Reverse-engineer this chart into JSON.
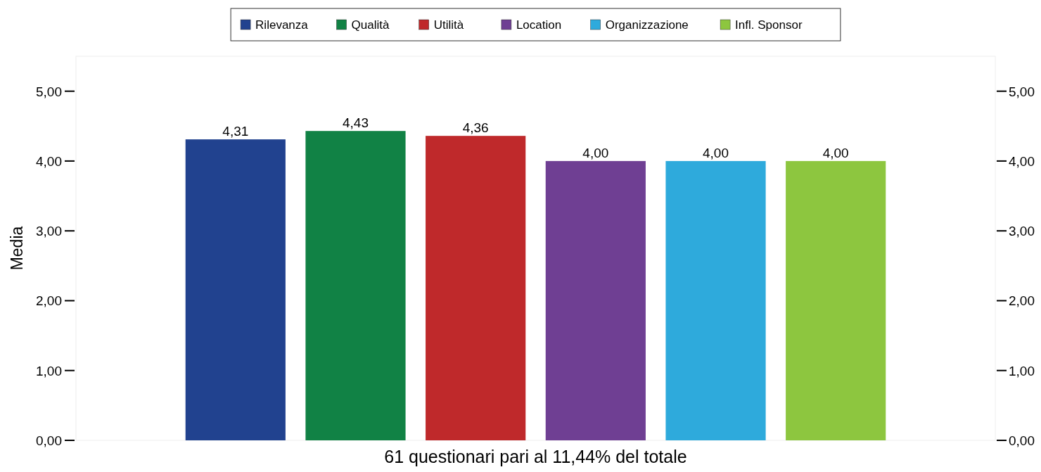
{
  "chart_data": {
    "type": "bar",
    "xlabel": "61 questionari pari al 11,44% del totale",
    "ylabel": "Media",
    "categories": [
      null
    ],
    "series": [
      {
        "name": "Rilevanza",
        "color": "#21428f",
        "values": [
          4.31
        ],
        "value_labels": [
          "4,31"
        ]
      },
      {
        "name": "Qualità",
        "color": "#118245",
        "values": [
          4.43
        ],
        "value_labels": [
          "4,43"
        ]
      },
      {
        "name": "Utilità",
        "color": "#bf292b",
        "values": [
          4.36
        ],
        "value_labels": [
          "4,36"
        ]
      },
      {
        "name": "Location",
        "color": "#6f3f93",
        "values": [
          4.0
        ],
        "value_labels": [
          "4,00"
        ]
      },
      {
        "name": "Organizzazione",
        "color": "#2eaadc",
        "values": [
          4.0
        ],
        "value_labels": [
          "4,00"
        ]
      },
      {
        "name": "Infl. Sponsor",
        "color": "#8dc63f",
        "values": [
          4.0
        ],
        "value_labels": [
          "4,00"
        ]
      }
    ],
    "ylim": [
      0,
      5.5
    ],
    "yticks": [
      {
        "value": 0,
        "label": "0,00"
      },
      {
        "value": 1,
        "label": "1,00"
      },
      {
        "value": 2,
        "label": "2,00"
      },
      {
        "value": 3,
        "label": "3,00"
      },
      {
        "value": 4,
        "label": "4,00"
      },
      {
        "value": 5,
        "label": "5,00"
      }
    ],
    "y2lim": [
      0,
      5.5
    ],
    "y2ticks": [
      {
        "value": 0,
        "label": "0,00"
      },
      {
        "value": 1,
        "label": "1,00"
      },
      {
        "value": 2,
        "label": "2,00"
      },
      {
        "value": 3,
        "label": "3,00"
      },
      {
        "value": 4,
        "label": "4,00"
      },
      {
        "value": 5,
        "label": "5,00"
      }
    ],
    "legend": "top",
    "grid": false
  }
}
